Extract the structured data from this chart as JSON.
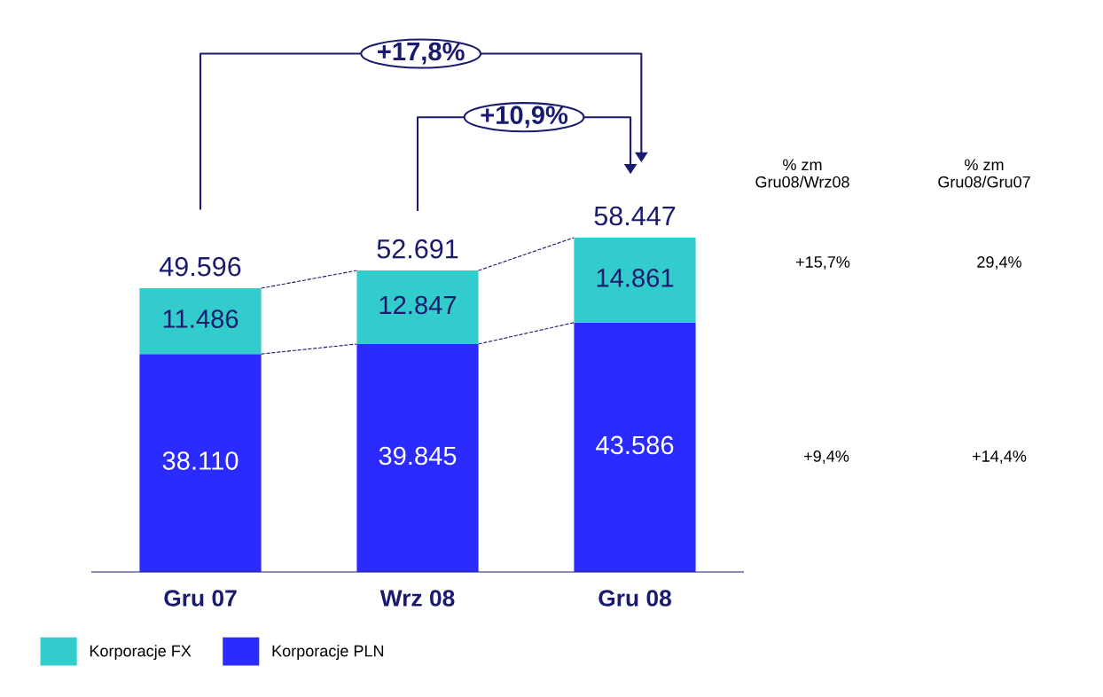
{
  "chart_data": {
    "type": "bar",
    "stacked": true,
    "categories": [
      "Gru 07",
      "Wrz 08",
      "Gru 08"
    ],
    "series": [
      {
        "name": "Korporacje PLN",
        "color": "#2b2bff",
        "values": [
          38110,
          39845,
          43586
        ],
        "value_labels": [
          "38.110",
          "39.845",
          "43.586"
        ]
      },
      {
        "name": "Korporacje FX",
        "color": "#33cccc",
        "values": [
          11486,
          12847,
          14861
        ],
        "value_labels": [
          "11.486",
          "12.847",
          "14.861"
        ]
      }
    ],
    "totals": [
      "49.596",
      "52.691",
      "58.447"
    ],
    "annotations": [
      "+17,8%",
      "+10,9%",
      "% zm\nGru08/Wrz08",
      "% zm\nGru08/Gru07",
      "+15,7%",
      "29,4%",
      "+9,4%",
      "+14,4%"
    ],
    "tick_labels": "x",
    "grid": false,
    "legend": "bottom left"
  }
}
